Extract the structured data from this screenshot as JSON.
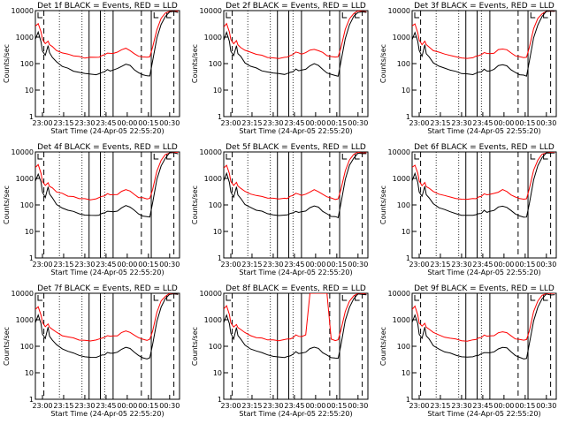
{
  "chart_data": {
    "type": "line",
    "grid": false,
    "layout": "3x3 grid",
    "shared": {
      "xlabel": "Start Time (24-Apr-05 22:55:20)",
      "ylabel": "Counts/sec",
      "y_scale": "log",
      "ylim": [
        1,
        10000
      ],
      "y_ticks": [
        "1",
        "10",
        "100",
        "1000",
        "10000"
      ],
      "xlim": [
        "22:55",
        "00:37"
      ],
      "x_ticks": [
        "23:00",
        "23:15",
        "23:30",
        "23:45",
        "00:00",
        "00:15",
        "00:30"
      ],
      "series_colors": {
        "events": "#000000",
        "lld": "#ff0000"
      },
      "time_points": [
        "22:55",
        "22:57",
        "22:59",
        "23:00",
        "23:02",
        "23:04",
        "23:05",
        "23:07",
        "23:10",
        "23:14",
        "23:18",
        "23:22",
        "23:26",
        "23:30",
        "23:34",
        "23:38",
        "23:40",
        "23:42",
        "23:44",
        "23:46",
        "23:48",
        "23:50",
        "23:53",
        "23:56",
        "23:59",
        "00:02",
        "00:05",
        "00:08",
        "00:11",
        "00:14",
        "00:16",
        "00:18",
        "00:21",
        "00:24",
        "00:27",
        "00:30",
        "00:33",
        "00:36"
      ],
      "events_base": [
        800,
        1500,
        700,
        300,
        200,
        500,
        250,
        180,
        110,
        80,
        65,
        55,
        48,
        42,
        40,
        40,
        42,
        45,
        50,
        60,
        55,
        55,
        62,
        80,
        95,
        85,
        60,
        45,
        38,
        35,
        35,
        120,
        900,
        3000,
        6000,
        9000,
        9000,
        9000
      ],
      "lld_base": [
        2500,
        3200,
        1500,
        800,
        550,
        700,
        500,
        420,
        320,
        260,
        220,
        200,
        180,
        170,
        165,
        170,
        180,
        200,
        220,
        260,
        250,
        240,
        260,
        320,
        360,
        320,
        250,
        200,
        180,
        170,
        175,
        400,
        2000,
        5000,
        8000,
        9500,
        9500,
        9500
      ]
    },
    "panels": [
      {
        "title": "Det 1f BLACK = Events, RED = LLD",
        "dashed_lines": [
          "23:01",
          "00:10",
          "00:33"
        ],
        "dotted_lines": [
          "23:12",
          "23:28",
          "23:44"
        ],
        "solid_lines": [
          "23:33",
          "23:41",
          "23:50",
          "00:17"
        ],
        "corner_marks": [
          "00:19",
          "00:28"
        ]
      },
      {
        "title": "Det 2f BLACK = Events, RED = LLD",
        "dashed_lines": [
          "23:01",
          "00:10",
          "00:33"
        ],
        "dotted_lines": [
          "23:12",
          "23:28",
          "23:44"
        ],
        "solid_lines": [
          "23:33",
          "23:41",
          "23:50",
          "00:17"
        ],
        "corner_marks": [
          "00:19",
          "00:28"
        ]
      },
      {
        "title": "Det 3f BLACK = Events, RED = LLD",
        "dashed_lines": [
          "23:01",
          "00:10",
          "00:33"
        ],
        "dotted_lines": [
          "23:12",
          "23:28",
          "23:44"
        ],
        "solid_lines": [
          "23:33",
          "23:41",
          "23:50",
          "00:17"
        ],
        "corner_marks": [
          "00:19",
          "00:28"
        ]
      },
      {
        "title": "Det 4f BLACK = Events, RED = LLD",
        "dashed_lines": [
          "23:01",
          "00:10",
          "00:33"
        ],
        "dotted_lines": [
          "23:12",
          "23:28",
          "23:44"
        ],
        "solid_lines": [
          "23:33",
          "23:41",
          "23:50",
          "00:17"
        ],
        "corner_marks": [
          "00:19",
          "00:28"
        ]
      },
      {
        "title": "Det 5f BLACK = Events, RED = LLD",
        "dashed_lines": [
          "23:01",
          "00:10",
          "00:33"
        ],
        "dotted_lines": [
          "23:12",
          "23:28",
          "23:44"
        ],
        "solid_lines": [
          "23:33",
          "23:41",
          "23:50",
          "00:17"
        ],
        "corner_marks": [
          "00:19",
          "00:28"
        ]
      },
      {
        "title": "Det 6f BLACK = Events, RED = LLD",
        "dashed_lines": [
          "23:01",
          "00:10",
          "00:33"
        ],
        "dotted_lines": [
          "23:12",
          "23:28",
          "23:44"
        ],
        "solid_lines": [
          "23:33",
          "23:41",
          "23:50",
          "00:17"
        ],
        "corner_marks": [
          "00:19",
          "00:28"
        ]
      },
      {
        "title": "Det 7f BLACK = Events, RED = LLD",
        "dashed_lines": [
          "23:01",
          "00:10",
          "00:33"
        ],
        "dotted_lines": [
          "23:12",
          "23:28",
          "23:44"
        ],
        "solid_lines": [
          "23:33",
          "23:41",
          "23:50",
          "00:17"
        ],
        "corner_marks": [
          "00:19",
          "00:28"
        ]
      },
      {
        "title": "Det 8f BLACK = Events, RED = LLD",
        "dashed_lines": [
          "23:01",
          "00:10",
          "00:33"
        ],
        "dotted_lines": [
          "23:12",
          "23:28",
          "23:44"
        ],
        "solid_lines": [
          "23:33",
          "23:41",
          "23:50",
          "00:17"
        ],
        "corner_marks": [
          "00:19",
          "00:28"
        ],
        "lld_saturation": {
          "from": "23:55",
          "to": "00:08",
          "value": 10000
        }
      },
      {
        "title": "Det 9f BLACK = Events, RED = LLD",
        "dashed_lines": [
          "23:01",
          "00:10",
          "00:33"
        ],
        "dotted_lines": [
          "23:12",
          "23:28",
          "23:44"
        ],
        "solid_lines": [
          "23:33",
          "23:41",
          "23:50",
          "00:17"
        ],
        "corner_marks": [
          "00:19",
          "00:28"
        ]
      }
    ]
  }
}
